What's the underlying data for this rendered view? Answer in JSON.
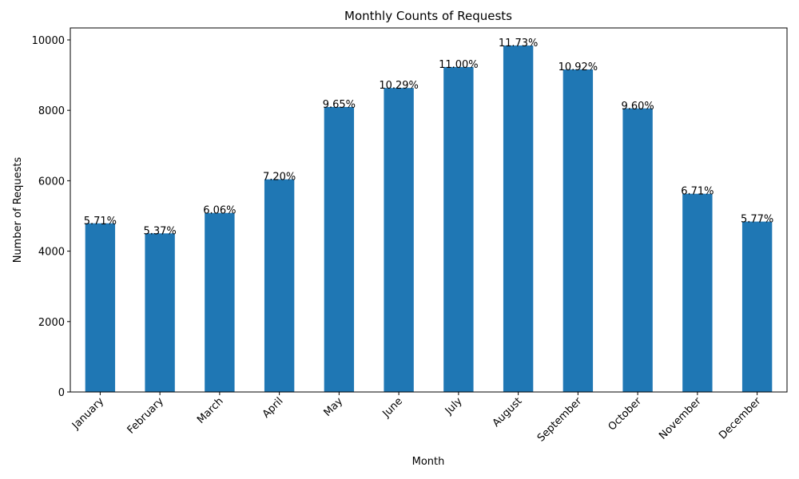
{
  "chart_data": {
    "type": "bar",
    "title": "Monthly Counts of Requests",
    "x_label": "Month",
    "y_label": "Number of Requests",
    "categories": [
      "January",
      "February",
      "March",
      "April",
      "May",
      "June",
      "July",
      "August",
      "September",
      "October",
      "November",
      "December"
    ],
    "values": [
      4790,
      4505,
      5085,
      6040,
      8095,
      8635,
      9230,
      9840,
      9160,
      8055,
      5630,
      4840
    ],
    "bar_labels": [
      "5.71%",
      "5.37%",
      "6.06%",
      "7.20%",
      "9.65%",
      "10.29%",
      "11.00%",
      "11.73%",
      "10.92%",
      "9.60%",
      "6.71%",
      "5.77%"
    ],
    "color": "#1f77b4",
    "ylim": [
      0,
      10340
    ],
    "yticks": [
      0,
      2000,
      4000,
      6000,
      8000,
      10000
    ],
    "grid": false
  }
}
